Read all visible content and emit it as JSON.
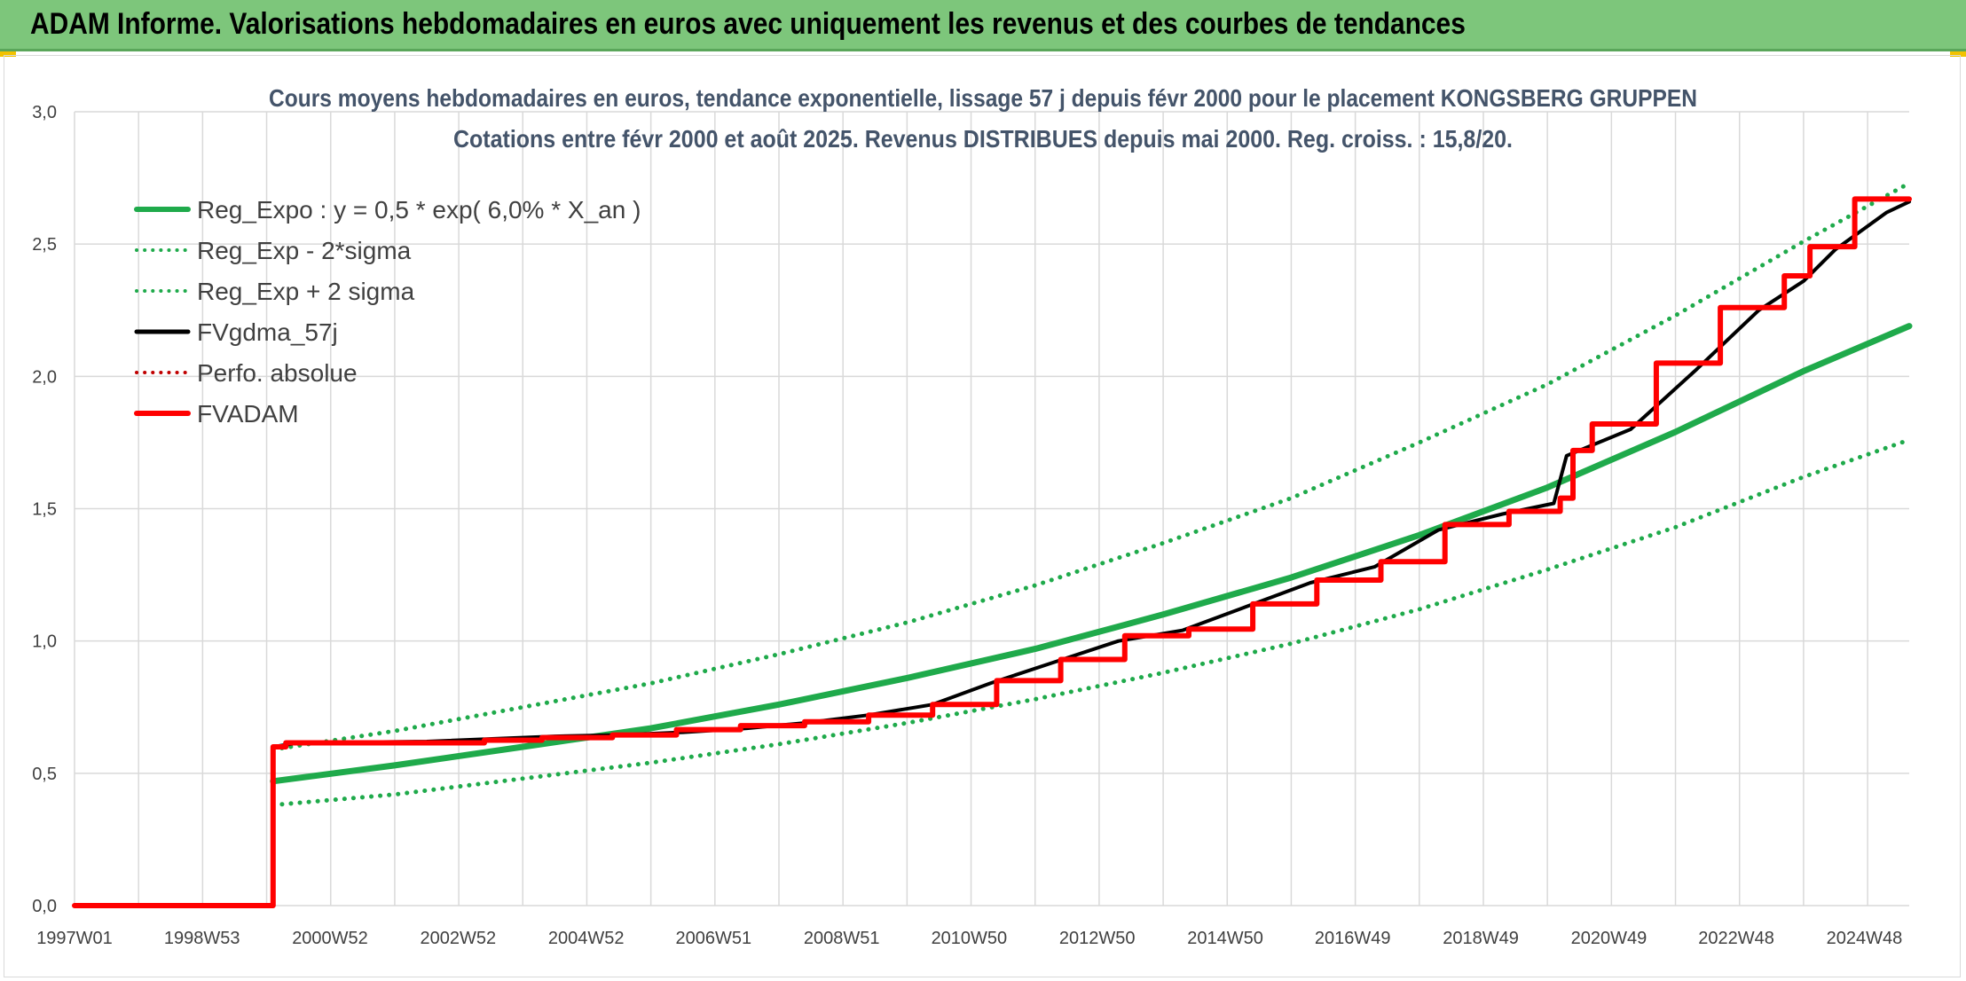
{
  "banner": {
    "title": "ADAM Informe. Valorisations hebdomadaires en euros avec uniquement les revenus et des courbes de tendances"
  },
  "chart_data": {
    "type": "line",
    "title": "Cours moyens hebdomadaires en euros, tendance exponentielle, lissage 57 j depuis févr 2000 pour le placement KONGSBERG GRUPPEN",
    "subtitle": "Cotations entre févr 2000 et août 2025. Revenus DISTRIBUES depuis mai 2000. Reg. croiss. : 15,8/20.",
    "xlabel": "",
    "ylabel": "",
    "x_ticks": [
      "1997W01",
      "1998W53",
      "2000W52",
      "2002W52",
      "2004W52",
      "2006W51",
      "2008W51",
      "2010W50",
      "2012W50",
      "2014W50",
      "2016W49",
      "2018W49",
      "2020W49",
      "2022W48",
      "2024W48"
    ],
    "x_tick_years": [
      1997.0,
      1998.99,
      2000.99,
      2002.99,
      2004.99,
      2006.98,
      2008.98,
      2010.97,
      2012.97,
      2014.97,
      2016.96,
      2018.96,
      2020.96,
      2022.95,
      2024.95
    ],
    "y_ticks": [
      "0,0",
      "0,5",
      "1,0",
      "1,5",
      "2,0",
      "2,5",
      "3,0"
    ],
    "xlim": [
      1997.0,
      2025.65
    ],
    "ylim": [
      0,
      3.0
    ],
    "grid": true,
    "legend_position": "top-left",
    "colors": {
      "reg_expo": "#1faa4b",
      "fvgdma": "#000000",
      "fvadam": "#ff0000",
      "perfo": "#c00000"
    },
    "series": [
      {
        "name": "Reg_Expo : y = 0,5 * exp( 6,0% *  X_an )",
        "style": "solid",
        "color": "#1faa4b",
        "x": [
          2000.1,
          2002.0,
          2004.0,
          2006.0,
          2008.0,
          2010.0,
          2012.0,
          2014.0,
          2016.0,
          2018.0,
          2020.0,
          2022.0,
          2024.0,
          2025.65
        ],
        "y": [
          0.47,
          0.53,
          0.6,
          0.67,
          0.76,
          0.86,
          0.97,
          1.1,
          1.24,
          1.4,
          1.58,
          1.79,
          2.02,
          2.19
        ]
      },
      {
        "name": "Reg_Exp - 2*sigma",
        "style": "dotted",
        "color": "#1faa4b",
        "x": [
          2000.1,
          2002.0,
          2004.0,
          2006.0,
          2008.0,
          2010.0,
          2012.0,
          2014.0,
          2016.0,
          2018.0,
          2020.0,
          2022.0,
          2024.0,
          2025.65
        ],
        "y": [
          0.38,
          0.42,
          0.48,
          0.54,
          0.61,
          0.69,
          0.78,
          0.88,
          0.99,
          1.12,
          1.27,
          1.43,
          1.62,
          1.76
        ]
      },
      {
        "name": "Reg_Exp + 2 sigma",
        "style": "dotted",
        "color": "#1faa4b",
        "x": [
          2000.1,
          2002.0,
          2004.0,
          2006.0,
          2008.0,
          2010.0,
          2012.0,
          2014.0,
          2016.0,
          2018.0,
          2020.0,
          2022.0,
          2024.0,
          2025.65
        ],
        "y": [
          0.59,
          0.66,
          0.75,
          0.84,
          0.95,
          1.07,
          1.21,
          1.37,
          1.54,
          1.75,
          1.97,
          2.23,
          2.51,
          2.73
        ]
      },
      {
        "name": "FVgdma_57j",
        "style": "solid",
        "color": "#000000",
        "x": [
          1997.0,
          2000.1,
          2000.1,
          2000.5,
          2002.5,
          2004.5,
          2005.5,
          2006.5,
          2007.5,
          2008.4,
          2009.4,
          2010.4,
          2011.3,
          2012.3,
          2013.3,
          2014.3,
          2015.3,
          2016.3,
          2017.3,
          2018.3,
          2019.3,
          2020.1,
          2020.3,
          2021.3,
          2022.3,
          2023.3,
          2024.0,
          2024.5,
          2025.3,
          2025.65
        ],
        "y": [
          0,
          0,
          0.6,
          0.615,
          0.62,
          0.64,
          0.645,
          0.655,
          0.67,
          0.69,
          0.72,
          0.76,
          0.84,
          0.92,
          1.0,
          1.04,
          1.13,
          1.22,
          1.28,
          1.42,
          1.48,
          1.52,
          1.7,
          1.8,
          2.02,
          2.25,
          2.36,
          2.48,
          2.62,
          2.66
        ]
      },
      {
        "name": "Perfo. absolue",
        "style": "dotted",
        "color": "#c00000",
        "x": [],
        "y": []
      },
      {
        "name": "FVADAM",
        "style": "step",
        "color": "#ff0000",
        "x": [
          1997.0,
          2000.1,
          2000.1,
          2000.3,
          2000.3,
          2003.4,
          2003.4,
          2004.3,
          2004.3,
          2005.4,
          2005.4,
          2006.4,
          2006.4,
          2007.4,
          2007.4,
          2008.4,
          2008.4,
          2009.4,
          2009.4,
          2010.4,
          2010.4,
          2011.4,
          2011.4,
          2012.4,
          2012.4,
          2013.4,
          2013.4,
          2014.4,
          2014.4,
          2015.4,
          2015.4,
          2016.4,
          2016.4,
          2017.4,
          2017.4,
          2018.4,
          2018.4,
          2019.4,
          2019.4,
          2020.2,
          2020.2,
          2020.4,
          2020.4,
          2020.7,
          2020.7,
          2021.7,
          2021.7,
          2022.7,
          2022.7,
          2023.7,
          2023.7,
          2024.1,
          2024.1,
          2024.8,
          2024.8,
          2025.4,
          2025.4,
          2025.65
        ],
        "y": [
          0,
          0,
          0.6,
          0.6,
          0.615,
          0.615,
          0.625,
          0.625,
          0.635,
          0.635,
          0.645,
          0.645,
          0.665,
          0.665,
          0.68,
          0.68,
          0.695,
          0.695,
          0.72,
          0.72,
          0.76,
          0.76,
          0.85,
          0.85,
          0.93,
          0.93,
          1.02,
          1.02,
          1.045,
          1.045,
          1.14,
          1.14,
          1.23,
          1.23,
          1.3,
          1.3,
          1.44,
          1.44,
          1.49,
          1.49,
          1.54,
          1.54,
          1.72,
          1.72,
          1.82,
          1.82,
          2.05,
          2.05,
          2.26,
          2.26,
          2.38,
          2.38,
          2.49,
          2.49,
          2.67,
          2.67,
          2.67,
          2.67
        ]
      }
    ]
  }
}
